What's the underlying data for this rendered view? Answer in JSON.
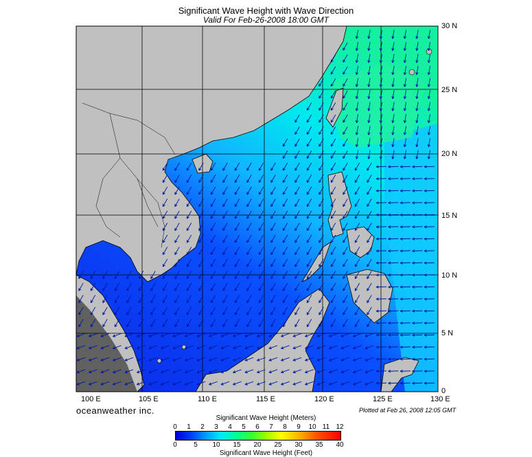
{
  "header": {
    "title": "Significant Wave Height with Wave Direction",
    "subtitle": "Valid For Feb-26-2008 18:00 GMT"
  },
  "map": {
    "lat_labels": [
      "30 N",
      "25 N",
      "20 N",
      "15 N",
      "10 N",
      "5 N",
      "0"
    ],
    "lon_labels": [
      "100 E",
      "105 E",
      "110 E",
      "115 E",
      "120 E",
      "125 E",
      "130 E"
    ],
    "colors": {
      "land": "#c0c0c0",
      "water_low": "#0022dd",
      "water_mid": "#0099ff",
      "water_high": "#00ffaa"
    }
  },
  "footer": {
    "brand": "oceanweather inc.",
    "plotted": "Plotted at Feb 26, 2008 12:05 GMT"
  },
  "legend": {
    "meters_title": "Significant Wave Height (Meters)",
    "meters_ticks": [
      "0",
      "1",
      "2",
      "3",
      "4",
      "5",
      "6",
      "7",
      "8",
      "9",
      "10",
      "11",
      "12"
    ],
    "feet_ticks": [
      "0",
      "5",
      "10",
      "15",
      "20",
      "25",
      "30",
      "35",
      "40"
    ],
    "feet_title": "Significant Wave Height (Feet)"
  }
}
